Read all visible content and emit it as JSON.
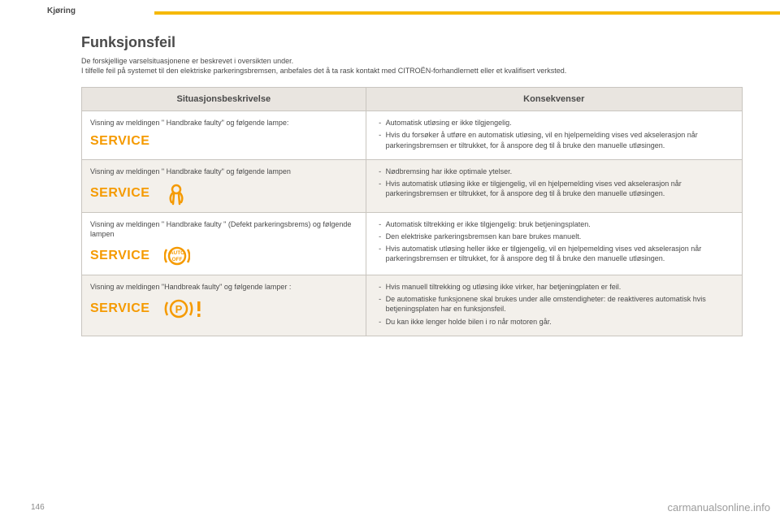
{
  "section_label": "Kjøring",
  "title": "Funksjonsfeil",
  "intro_line1": "De forskjellige varselsituasjonene er beskrevet i oversikten under.",
  "intro_line2": "I tilfelle feil på systemet til den elektriske parkeringsbremsen, anbefales det å ta rask kontakt med CITROËN-forhandlernett eller et kvalifisert verksted.",
  "headers": {
    "left": "Situasjonsbeskrivelse",
    "right": "Konsekvenser"
  },
  "rows": [
    {
      "shaded": false,
      "situation": "Visning av meldingen \" Handbrake faulty\" og følgende lampe:",
      "icons": [
        "service"
      ],
      "consequences": [
        "Automatisk utløsing er ikke tilgjengelig.",
        "Hvis du forsøker å utføre en automatisk utløsing, vil en hjelpemelding vises ved akselerasjon når parkeringsbremsen er tiltrukket, for å anspore deg til å bruke den manuelle utløsingen."
      ]
    },
    {
      "shaded": true,
      "situation": "Visning av meldingen \" Handbrake faulty\" og følgende lampen",
      "icons": [
        "service",
        "secondary"
      ],
      "consequences": [
        "Nødbremsing har ikke optimale ytelser.",
        "Hvis automatisk utløsing ikke er tilgjengelig, vil en hjelpemelding vises ved akselerasjon når parkeringsbremsen er tiltrukket, for å anspore deg til å bruke den manuelle utløsingen."
      ]
    },
    {
      "shaded": false,
      "situation": "Visning av meldingen \" Handbrake faulty \" (Defekt parkeringsbrems) og følgende lampen",
      "icons": [
        "service",
        "auto-off"
      ],
      "consequences": [
        "Automatisk tiltrekking er ikke tilgjengelig: bruk betjeningsplaten.",
        "Den elektriske parkeringsbremsen kan bare brukes manuelt.",
        "Hvis automatisk utløsing heller ikke er tilgjengelig, vil en hjelpemelding vises ved akselerasjon når parkeringsbremsen er tiltrukket, for å anspore deg til å bruke den manuelle utløsingen."
      ]
    },
    {
      "shaded": true,
      "situation": "Visning av meldingen \"Handbreak faulty\" og følgende lamper :",
      "icons": [
        "service",
        "park-warn"
      ],
      "consequences": [
        "Hvis manuell tiltrekking og utløsing ikke virker, har betjeningplaten er feil.",
        "De automatiske funksjonene skal brukes under alle omstendigheter: de reaktiveres automatisk hvis betjeningsplaten har en funksjonsfeil.",
        "Du kan ikke lenger holde bilen i ro når motoren går."
      ]
    }
  ],
  "colors": {
    "accent_line": "#f5b800",
    "icon_orange": "#f59a00",
    "header_bg": "#e9e5e0",
    "shaded_bg": "#f3f0eb",
    "border": "#c9c5bf",
    "text": "#4a4a4a",
    "watermark": "#9c9c9c"
  },
  "page_number": "146",
  "watermark": "carmanualsonline.info"
}
